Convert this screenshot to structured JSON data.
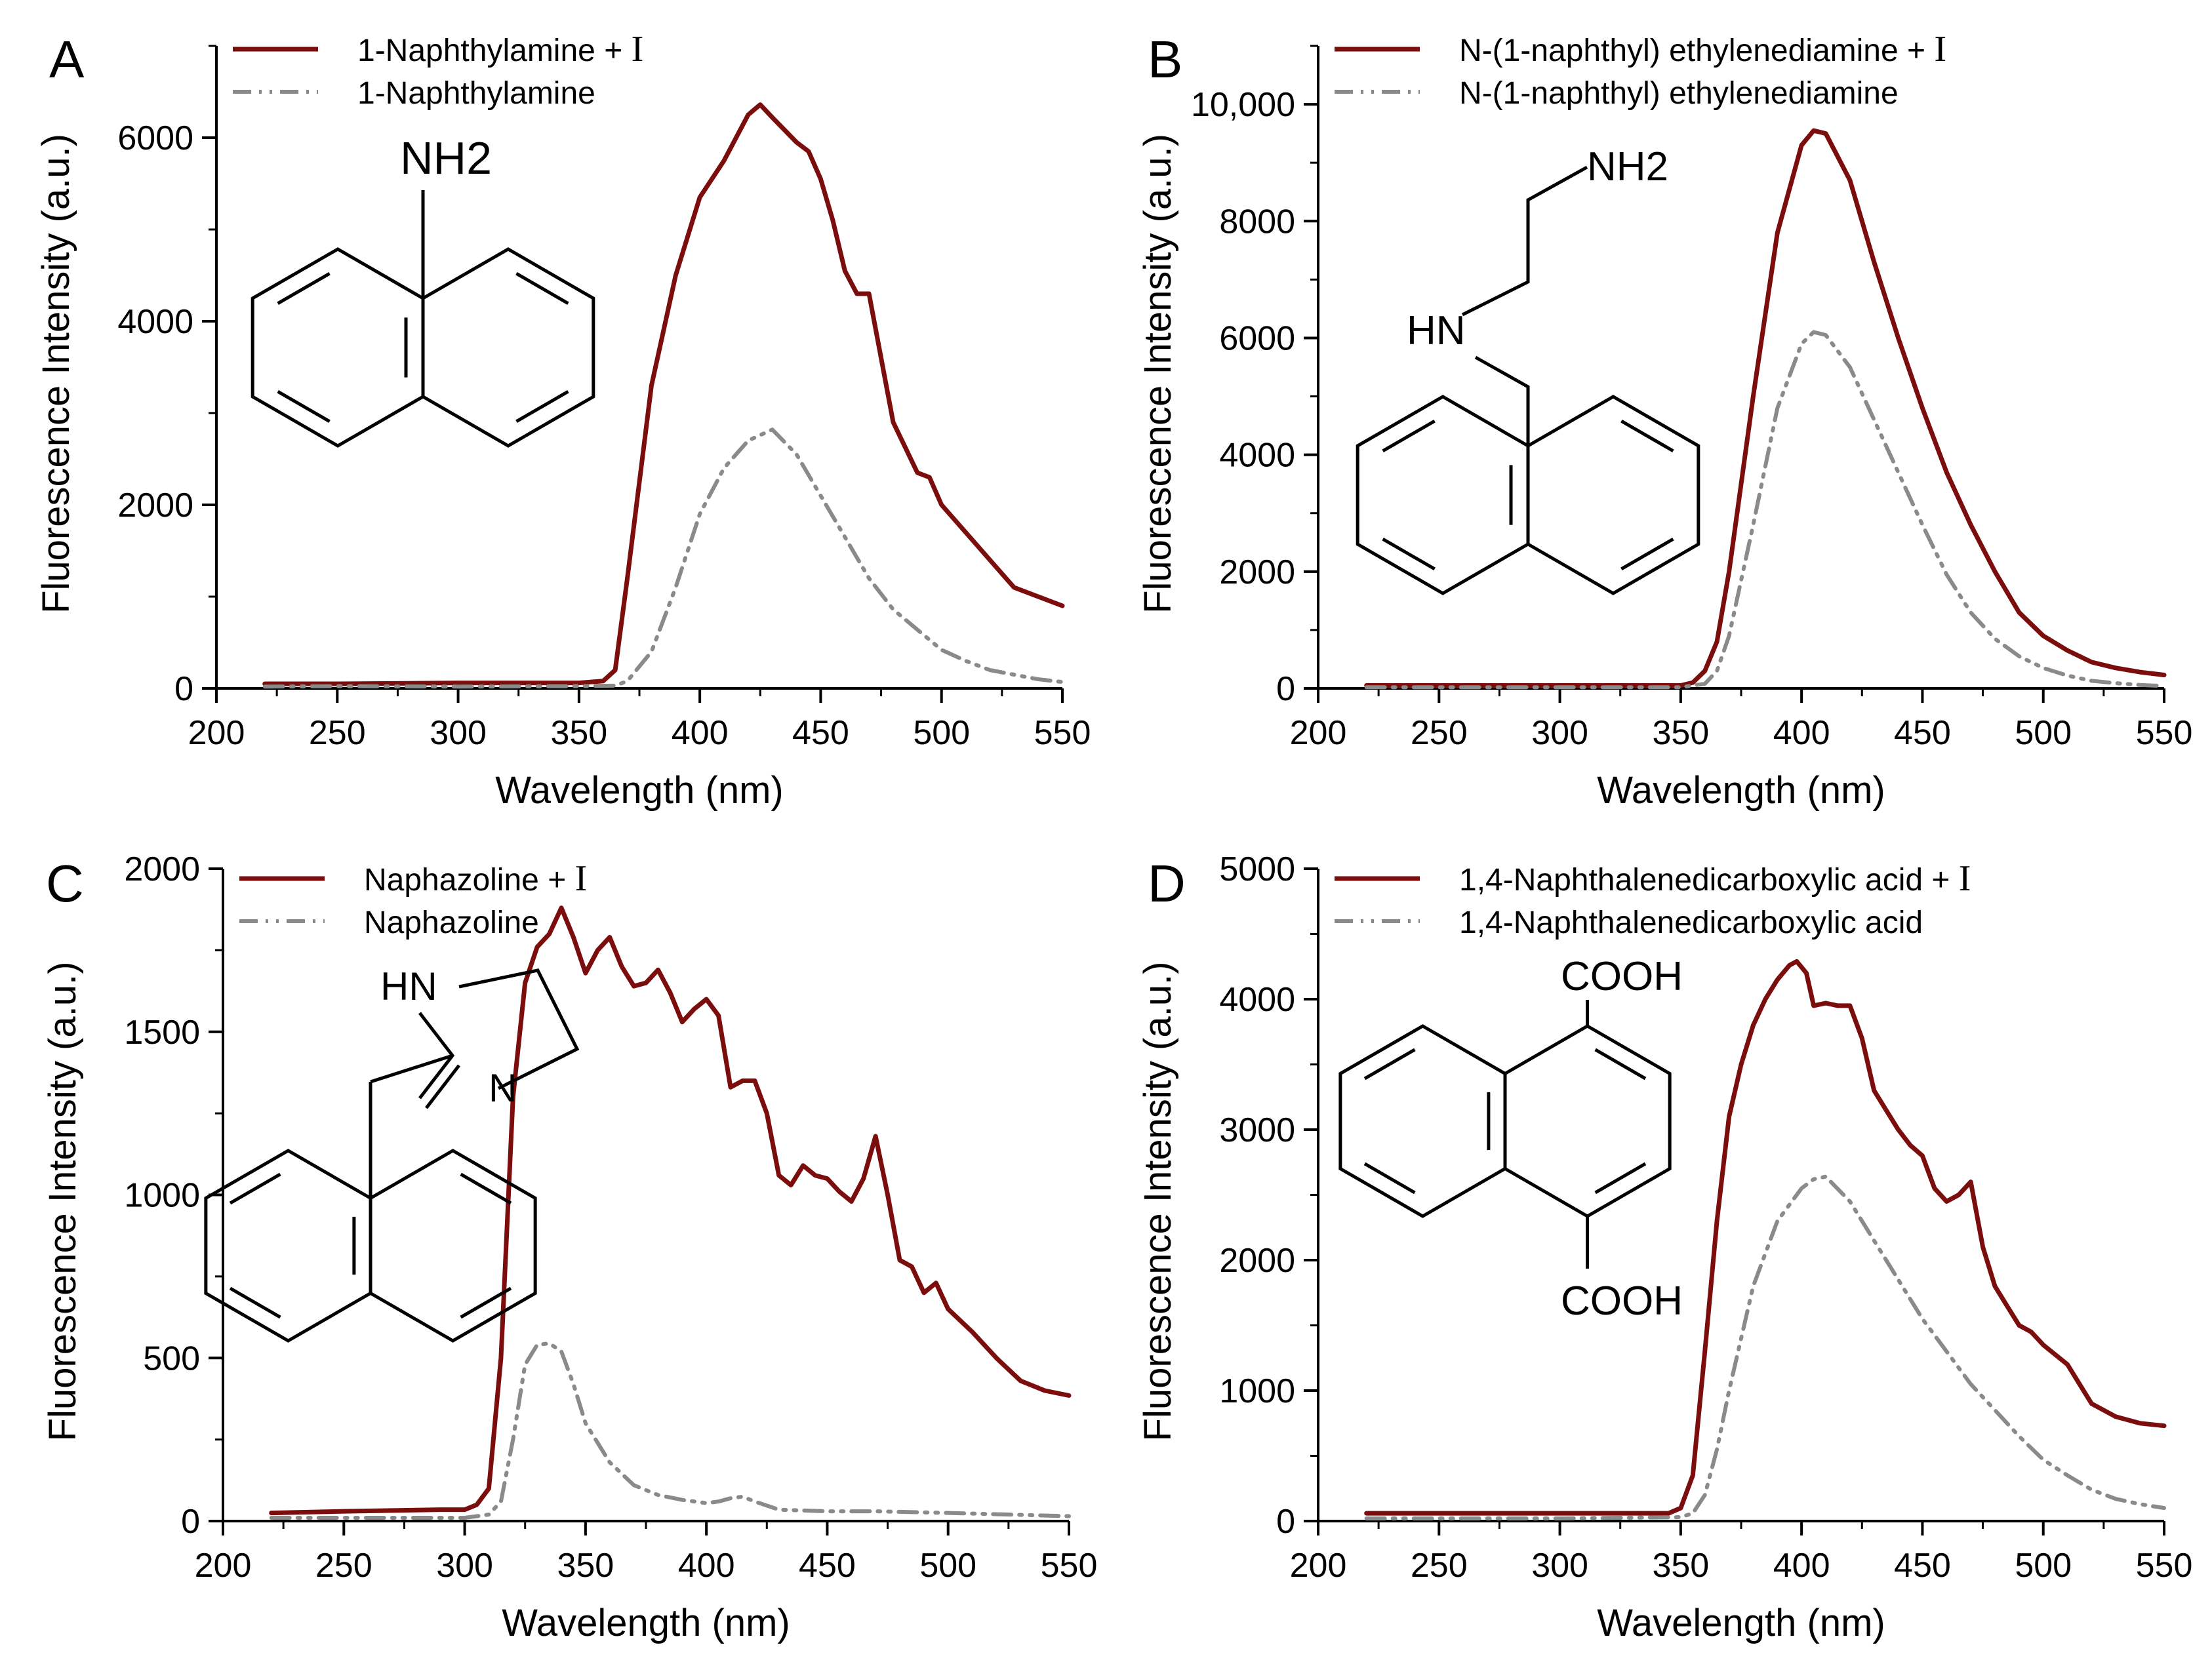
{
  "colors": {
    "with_reagent": "#7b0d0d",
    "without_reagent": "#8a8a8a",
    "axis": "#000000"
  },
  "chart_data": [
    {
      "panel": "A",
      "type": "line",
      "xlabel": "Wavelength (nm)",
      "ylabel": "Fluorescence Intensity (a.u.)",
      "xlim": [
        200,
        550
      ],
      "ylim": [
        0,
        7000
      ],
      "xticks": [
        "200",
        "250",
        "300",
        "350",
        "400",
        "450",
        "500",
        "550"
      ],
      "yticks": [
        {
          "v": 0,
          "t": "0"
        },
        {
          "v": 2000,
          "t": "2000"
        },
        {
          "v": 4000,
          "t": "4000"
        },
        {
          "v": 6000,
          "t": "6000"
        }
      ],
      "structure_labels": [
        "NH2"
      ],
      "series": [
        {
          "name": "1-Naphthylamine + ",
          "reagent": "I",
          "style": "solid",
          "x": [
            220,
            250,
            300,
            350,
            360,
            365,
            370,
            380,
            390,
            400,
            410,
            420,
            425,
            430,
            440,
            445,
            450,
            455,
            460,
            465,
            470,
            480,
            490,
            495,
            500,
            510,
            520,
            530,
            540,
            550
          ],
          "y": [
            50,
            50,
            60,
            60,
            80,
            200,
            1200,
            3300,
            4500,
            5350,
            5750,
            6250,
            6360,
            6220,
            5950,
            5850,
            5550,
            5100,
            4550,
            4300,
            4300,
            2900,
            2350,
            2300,
            2000,
            1700,
            1400,
            1100,
            1000,
            900
          ]
        },
        {
          "name": "1-Naphthylamine",
          "reagent": "",
          "style": "dashdot",
          "x": [
            220,
            250,
            300,
            350,
            365,
            370,
            380,
            390,
            400,
            410,
            420,
            430,
            440,
            450,
            460,
            470,
            480,
            490,
            500,
            510,
            520,
            530,
            540,
            550
          ],
          "y": [
            20,
            25,
            20,
            25,
            30,
            80,
            400,
            1100,
            1900,
            2400,
            2700,
            2820,
            2550,
            2100,
            1650,
            1200,
            860,
            640,
            420,
            300,
            200,
            150,
            100,
            70
          ]
        }
      ]
    },
    {
      "panel": "B",
      "type": "line",
      "xlabel": "Wavelength (nm)",
      "ylabel": "Fluorescence Intensity (a.u.)",
      "xlim": [
        200,
        550
      ],
      "ylim": [
        0,
        11000
      ],
      "xticks": [
        "200",
        "250",
        "300",
        "350",
        "400",
        "450",
        "500",
        "550"
      ],
      "yticks": [
        {
          "v": 0,
          "t": "0"
        },
        {
          "v": 2000,
          "t": "2000"
        },
        {
          "v": 4000,
          "t": "4000"
        },
        {
          "v": 6000,
          "t": "6000"
        },
        {
          "v": 8000,
          "t": "8000"
        },
        {
          "v": 10000,
          "t": "10,000"
        }
      ],
      "structure_labels": [
        "NH2",
        "HN"
      ],
      "series": [
        {
          "name": "N-(1-naphthyl) ethylenediamine + ",
          "reagent": "I",
          "style": "solid",
          "x": [
            220,
            250,
            300,
            350,
            355,
            360,
            365,
            370,
            380,
            390,
            400,
            405,
            410,
            420,
            430,
            440,
            450,
            460,
            470,
            480,
            490,
            500,
            510,
            520,
            530,
            540,
            550
          ],
          "y": [
            50,
            50,
            50,
            50,
            100,
            300,
            800,
            2000,
            5000,
            7800,
            9300,
            9550,
            9500,
            8700,
            7300,
            6000,
            4800,
            3700,
            2800,
            2000,
            1300,
            900,
            650,
            450,
            350,
            280,
            230
          ]
        },
        {
          "name": "N-(1-naphthyl) ethylenediamine",
          "reagent": "",
          "style": "dashdot",
          "x": [
            220,
            250,
            300,
            350,
            360,
            365,
            370,
            380,
            390,
            400,
            405,
            410,
            420,
            430,
            440,
            450,
            460,
            470,
            480,
            490,
            500,
            510,
            520,
            530,
            540,
            550
          ],
          "y": [
            20,
            20,
            20,
            20,
            80,
            300,
            900,
            2800,
            4800,
            5900,
            6100,
            6050,
            5500,
            4600,
            3700,
            2800,
            1950,
            1300,
            850,
            550,
            350,
            220,
            130,
            90,
            60,
            40
          ]
        }
      ]
    },
    {
      "panel": "C",
      "type": "line",
      "xlabel": "Wavelength (nm)",
      "ylabel": "Fluorescence Intensity (a.u.)",
      "xlim": [
        200,
        550
      ],
      "ylim": [
        0,
        2000
      ],
      "xticks": [
        "200",
        "250",
        "300",
        "350",
        "400",
        "450",
        "500",
        "550"
      ],
      "yticks": [
        {
          "v": 0,
          "t": "0"
        },
        {
          "v": 500,
          "t": "500"
        },
        {
          "v": 1000,
          "t": "1000"
        },
        {
          "v": 1500,
          "t": "1500"
        },
        {
          "v": 2000,
          "t": "2000"
        }
      ],
      "structure_labels": [
        "HN",
        "N"
      ],
      "series": [
        {
          "name": "Naphazoline + ",
          "reagent": "I",
          "style": "solid",
          "x": [
            220,
            250,
            290,
            300,
            305,
            310,
            315,
            320,
            325,
            330,
            335,
            340,
            345,
            350,
            355,
            360,
            365,
            370,
            375,
            380,
            385,
            390,
            395,
            400,
            405,
            410,
            415,
            420,
            425,
            430,
            435,
            440,
            445,
            450,
            455,
            460,
            465,
            470,
            475,
            480,
            485,
            490,
            495,
            500,
            510,
            520,
            530,
            540,
            550
          ],
          "y": [
            25,
            30,
            35,
            35,
            50,
            100,
            500,
            1300,
            1650,
            1760,
            1800,
            1880,
            1790,
            1680,
            1750,
            1790,
            1700,
            1640,
            1650,
            1690,
            1620,
            1530,
            1570,
            1600,
            1550,
            1330,
            1350,
            1350,
            1250,
            1060,
            1030,
            1090,
            1060,
            1050,
            1010,
            980,
            1050,
            1180,
            1000,
            800,
            780,
            700,
            730,
            650,
            580,
            500,
            430,
            400,
            385
          ]
        },
        {
          "name": "Naphazoline",
          "reagent": "",
          "style": "dashdot",
          "x": [
            220,
            250,
            300,
            310,
            315,
            320,
            325,
            330,
            335,
            340,
            345,
            350,
            360,
            370,
            380,
            390,
            400,
            405,
            410,
            415,
            420,
            430,
            450,
            470,
            500,
            550
          ],
          "y": [
            10,
            10,
            10,
            20,
            60,
            250,
            480,
            540,
            545,
            520,
            420,
            300,
            180,
            110,
            80,
            65,
            55,
            60,
            70,
            75,
            60,
            35,
            30,
            30,
            25,
            15
          ]
        }
      ]
    },
    {
      "panel": "D",
      "type": "line",
      "xlabel": "Wavelength (nm)",
      "ylabel": "Fluorescence Intensity (a.u.)",
      "xlim": [
        200,
        550
      ],
      "ylim": [
        0,
        5000
      ],
      "xticks": [
        "200",
        "250",
        "300",
        "350",
        "400",
        "450",
        "500",
        "550"
      ],
      "yticks": [
        {
          "v": 0,
          "t": "0"
        },
        {
          "v": 1000,
          "t": "1000"
        },
        {
          "v": 2000,
          "t": "2000"
        },
        {
          "v": 3000,
          "t": "3000"
        },
        {
          "v": 4000,
          "t": "4000"
        },
        {
          "v": 5000,
          "t": "5000"
        }
      ],
      "structure_labels": [
        "COOH",
        "COOH"
      ],
      "series": [
        {
          "name": "1,4-Naphthalenedicarboxylic acid + ",
          "reagent": "I",
          "style": "solid",
          "x": [
            220,
            250,
            300,
            345,
            350,
            355,
            360,
            365,
            370,
            375,
            380,
            385,
            390,
            395,
            398,
            402,
            405,
            410,
            415,
            420,
            425,
            430,
            435,
            440,
            445,
            450,
            455,
            460,
            465,
            470,
            475,
            480,
            485,
            490,
            495,
            500,
            510,
            520,
            530,
            540,
            550
          ],
          "y": [
            60,
            60,
            60,
            60,
            100,
            350,
            1300,
            2300,
            3100,
            3500,
            3800,
            4000,
            4150,
            4260,
            4290,
            4200,
            3950,
            3970,
            3950,
            3950,
            3700,
            3300,
            3150,
            3000,
            2880,
            2800,
            2550,
            2450,
            2500,
            2600,
            2100,
            1800,
            1650,
            1500,
            1450,
            1350,
            1200,
            900,
            800,
            750,
            730
          ]
        },
        {
          "name": "1,4-Naphthalenedicarboxylic acid",
          "reagent": "",
          "style": "dashdot",
          "x": [
            220,
            250,
            300,
            350,
            355,
            360,
            365,
            370,
            380,
            390,
            400,
            405,
            410,
            420,
            430,
            440,
            450,
            460,
            470,
            480,
            490,
            500,
            510,
            520,
            530,
            540,
            550
          ],
          "y": [
            20,
            20,
            20,
            30,
            60,
            200,
            550,
            1000,
            1800,
            2300,
            2550,
            2620,
            2640,
            2450,
            2150,
            1850,
            1550,
            1300,
            1050,
            850,
            650,
            470,
            350,
            240,
            170,
            130,
            100
          ]
        }
      ]
    }
  ]
}
